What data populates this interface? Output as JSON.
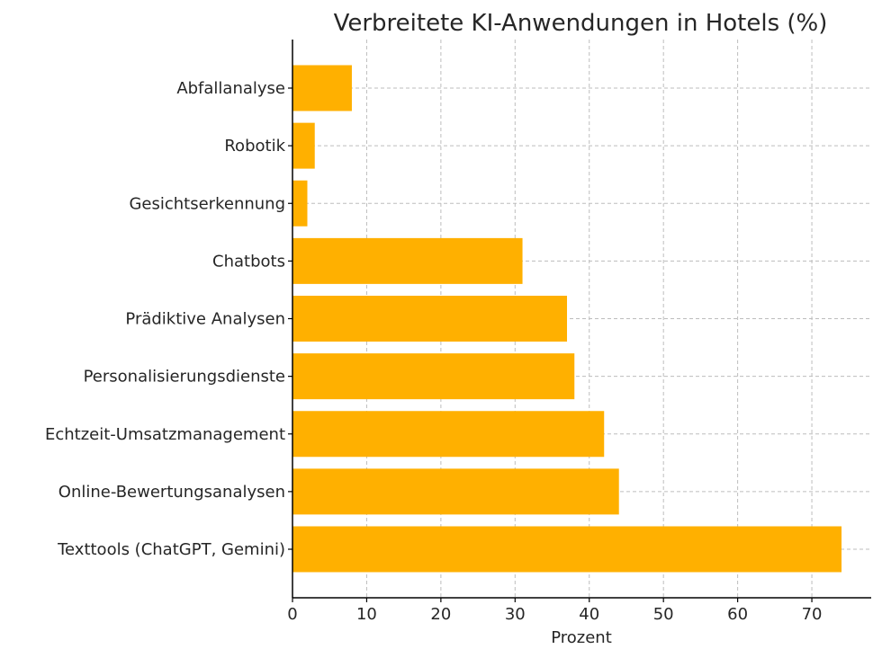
{
  "chart_data": {
    "type": "bar",
    "orientation": "horizontal",
    "title": "Verbreitete KI-Anwendungen in Hotels (%)",
    "xlabel": "Prozent",
    "ylabel": "",
    "categories": [
      "Texttools (ChatGPT, Gemini)",
      "Online-Bewertungsanalysen",
      "Echtzeit-Umsatzmanagement",
      "Personalisierungsdienste",
      "Prädiktive Analysen",
      "Chatbots",
      "Gesichtserkennung",
      "Robotik",
      "Abfallanalyse"
    ],
    "values": [
      74,
      44,
      42,
      38,
      37,
      31,
      2,
      3,
      8
    ],
    "xlim": [
      0,
      78
    ],
    "xticks": [
      0,
      10,
      20,
      30,
      40,
      50,
      60,
      70
    ],
    "grid": true,
    "bar_color": "#FFB000"
  }
}
